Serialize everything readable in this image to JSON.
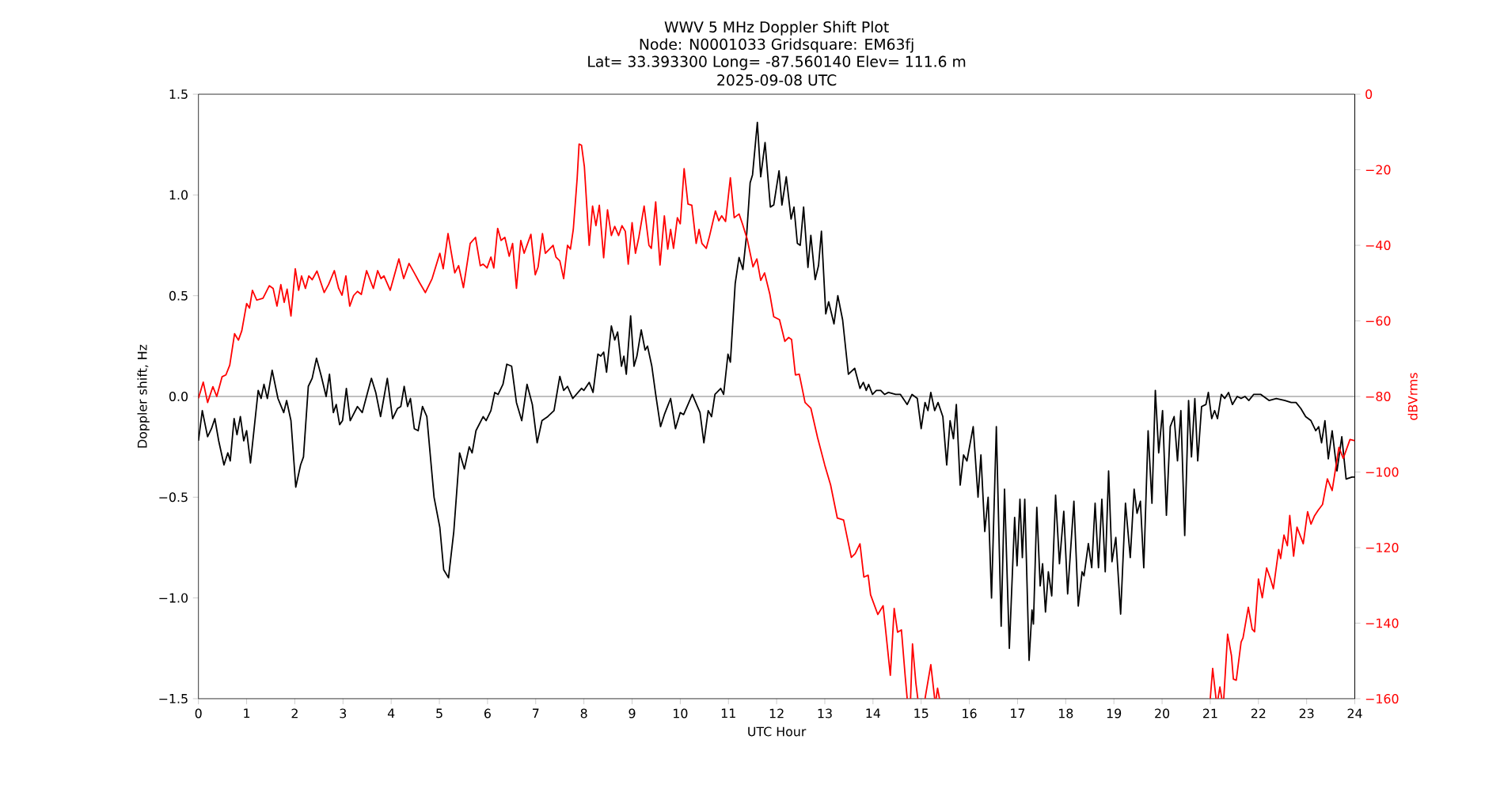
{
  "chart_data": {
    "type": "line",
    "title": "WWV 5 MHz Doppler Shift Plot",
    "subtitle": "Node:  N0001033     Gridsquare:  EM63fj",
    "annotations": [
      "Lat= 33.393300    Long= -87.560140    Elev= 111.6 m",
      "2025-09-08  UTC"
    ],
    "xlabel": "UTC Hour",
    "ylabel": "Doppler shift, Hz",
    "y2label": "dBVrms",
    "xlim": [
      0,
      24
    ],
    "xticks": [
      0,
      1,
      2,
      3,
      4,
      5,
      6,
      7,
      8,
      9,
      10,
      11,
      12,
      13,
      14,
      15,
      16,
      17,
      18,
      19,
      20,
      21,
      22,
      23,
      24
    ],
    "ylim": [
      -1.5,
      1.5
    ],
    "yticks": [
      {
        "value": -1.5,
        "label": "−1.5"
      },
      {
        "value": -1.0,
        "label": "−1.0"
      },
      {
        "value": -0.5,
        "label": "−0.5"
      },
      {
        "value": 0.0,
        "label": "0.0"
      },
      {
        "value": 0.5,
        "label": "0.5"
      },
      {
        "value": 1.0,
        "label": "1.0"
      },
      {
        "value": 1.5,
        "label": "1.5"
      }
    ],
    "y2lim": [
      -160,
      0
    ],
    "y2ticks": [
      {
        "value": -160,
        "label": "−160"
      },
      {
        "value": -140,
        "label": "−140"
      },
      {
        "value": -120,
        "label": "−120"
      },
      {
        "value": -100,
        "label": "−100"
      },
      {
        "value": -80,
        "label": "−80"
      },
      {
        "value": -60,
        "label": "−60"
      },
      {
        "value": -40,
        "label": "−40"
      },
      {
        "value": -20,
        "label": "−20"
      },
      0
    ],
    "ref_lines": [
      {
        "axis": "y",
        "value": 0,
        "color": "#808080"
      }
    ],
    "series": [
      {
        "color": "#000000",
        "x": [
          0,
          0.08,
          0.19,
          0.27,
          0.34,
          0.42,
          0.53,
          0.61,
          0.66,
          0.74,
          0.8,
          0.87,
          0.94,
          1.0,
          1.08,
          1.24,
          1.3,
          1.36,
          1.43,
          1.53,
          1.65,
          1.77,
          1.83,
          1.92,
          2.02,
          2.12,
          2.18,
          2.28,
          2.36,
          2.45,
          2.55,
          2.65,
          2.72,
          2.8,
          2.86,
          2.93,
          2.99,
          3.07,
          3.15,
          3.3,
          3.4,
          3.51,
          3.59,
          3.68,
          3.78,
          3.92,
          4.03,
          4.13,
          4.2,
          4.27,
          4.34,
          4.4,
          4.48,
          4.56,
          4.65,
          4.74,
          4.89,
          5.01,
          5.09,
          5.19,
          5.3,
          5.42,
          5.52,
          5.62,
          5.68,
          5.76,
          5.91,
          5.97,
          6.07,
          6.15,
          6.22,
          6.32,
          6.4,
          6.5,
          6.6,
          6.71,
          6.82,
          6.93,
          7.03,
          7.13,
          7.25,
          7.38,
          7.5,
          7.58,
          7.66,
          7.77,
          7.95,
          8.0,
          8.11,
          8.19,
          8.29,
          8.35,
          8.41,
          8.47,
          8.57,
          8.64,
          8.7,
          8.78,
          8.83,
          8.88,
          8.97,
          9.04,
          9.1,
          9.19,
          9.27,
          9.32,
          9.41,
          9.49,
          9.59,
          9.67,
          9.8,
          9.9,
          10.0,
          10.07,
          10.25,
          10.41,
          10.49,
          10.58,
          10.65,
          10.72,
          10.84,
          10.9,
          10.99,
          11.04,
          11.14,
          11.22,
          11.3,
          11.38,
          11.45,
          11.5,
          11.6,
          11.67,
          11.76,
          11.87,
          11.94,
          12.05,
          12.11,
          12.2,
          12.3,
          12.36,
          12.43,
          12.49,
          12.56,
          12.65,
          12.71,
          12.8,
          12.87,
          12.93,
          13.02,
          13.08,
          13.19,
          13.27,
          13.37,
          13.49,
          13.62,
          13.73,
          13.8,
          13.86,
          13.91,
          13.99,
          14.07,
          14.16,
          14.24,
          14.32,
          14.47,
          14.57,
          14.71,
          14.81,
          14.92,
          15.0,
          15.08,
          15.14,
          15.2,
          15.28,
          15.35,
          15.45,
          15.53,
          15.6,
          15.67,
          15.73,
          15.81,
          15.88,
          15.95,
          16.08,
          16.18,
          16.24,
          16.32,
          16.39,
          16.46,
          16.56,
          16.66,
          16.73,
          16.83,
          16.94,
          16.99,
          17.05,
          17.1,
          17.15,
          17.24,
          17.3,
          17.33,
          17.4,
          17.47,
          17.52,
          17.58,
          17.64,
          17.71,
          17.79,
          17.87,
          17.96,
          18.04,
          18.17,
          18.26,
          18.34,
          18.38,
          18.47,
          18.54,
          18.61,
          18.68,
          18.75,
          18.82,
          18.89,
          18.96,
          19.04,
          19.14,
          19.24,
          19.34,
          19.42,
          19.48,
          19.55,
          19.62,
          19.71,
          19.79,
          19.86,
          19.93,
          20.01,
          20.09,
          20.17,
          20.25,
          20.32,
          20.39,
          20.47,
          20.55,
          20.61,
          20.68,
          20.74,
          20.82,
          20.91,
          20.96,
          21.03,
          21.09,
          21.15,
          21.23,
          21.3,
          21.38,
          21.46,
          21.56,
          21.64,
          21.72,
          21.8,
          21.9,
          22.05,
          22.22,
          22.37,
          22.55,
          22.68,
          22.78,
          22.88,
          22.98,
          23.09,
          23.19,
          23.25,
          23.31,
          23.38,
          23.45,
          23.53,
          23.63,
          23.73,
          23.82,
          23.94,
          24.0
        ],
        "values": [
          -0.22,
          -0.07,
          -0.2,
          -0.16,
          -0.11,
          -0.22,
          -0.34,
          -0.28,
          -0.32,
          -0.11,
          -0.19,
          -0.1,
          -0.22,
          -0.17,
          -0.33,
          0.03,
          -0.01,
          0.06,
          -0.01,
          0.13,
          -0.01,
          -0.08,
          -0.02,
          -0.12,
          -0.45,
          -0.34,
          -0.3,
          0.05,
          0.09,
          0.19,
          0.1,
          0,
          0.11,
          -0.08,
          -0.04,
          -0.14,
          -0.12,
          0.04,
          -0.12,
          -0.05,
          -0.08,
          0.02,
          0.09,
          0.02,
          -0.1,
          0.09,
          -0.11,
          -0.06,
          -0.05,
          0.05,
          -0.05,
          -0.01,
          -0.16,
          -0.17,
          -0.05,
          -0.1,
          -0.5,
          -0.65,
          -0.86,
          -0.9,
          -0.67,
          -0.28,
          -0.36,
          -0.25,
          -0.28,
          -0.17,
          -0.1,
          -0.12,
          -0.07,
          0.02,
          0.01,
          0.06,
          0.16,
          0.15,
          -0.03,
          -0.12,
          0.06,
          -0.04,
          -0.23,
          -0.12,
          -0.1,
          -0.07,
          0.1,
          0.03,
          0.05,
          -0.01,
          0.04,
          0.03,
          0.07,
          0.02,
          0.21,
          0.2,
          0.22,
          0.12,
          0.35,
          0.28,
          0.32,
          0.15,
          0.2,
          0.11,
          0.4,
          0.15,
          0.2,
          0.33,
          0.23,
          0.25,
          0.15,
          0.01,
          -0.15,
          -0.09,
          -0.01,
          -0.16,
          -0.08,
          -0.09,
          0.01,
          -0.08,
          -0.23,
          -0.07,
          -0.1,
          0.01,
          0.04,
          0.01,
          0.21,
          0.17,
          0.56,
          0.69,
          0.63,
          0.81,
          1.06,
          1.1,
          1.36,
          1.09,
          1.26,
          0.94,
          0.95,
          1.12,
          0.95,
          1.09,
          0.88,
          0.94,
          0.76,
          0.75,
          0.94,
          0.64,
          0.8,
          0.58,
          0.65,
          0.82,
          0.41,
          0.47,
          0.36,
          0.5,
          0.38,
          0.11,
          0.14,
          0.04,
          0.07,
          0.03,
          0.06,
          0.01,
          0.03,
          0.03,
          0.01,
          0.02,
          0.01,
          0.01,
          -0.04,
          0.01,
          -0.01,
          -0.16,
          -0.03,
          -0.07,
          0.02,
          -0.07,
          -0.03,
          -0.1,
          -0.34,
          -0.12,
          -0.21,
          -0.04,
          -0.44,
          -0.29,
          -0.32,
          -0.15,
          -0.5,
          -0.29,
          -0.67,
          -0.5,
          -1.0,
          -0.15,
          -1.14,
          -0.46,
          -1.25,
          -0.6,
          -0.84,
          -0.51,
          -0.8,
          -0.51,
          -1.31,
          -1.06,
          -1.13,
          -0.55,
          -0.94,
          -0.83,
          -1.07,
          -0.87,
          -0.99,
          -0.49,
          -0.83,
          -0.57,
          -0.98,
          -0.52,
          -1.04,
          -0.87,
          -0.89,
          -0.73,
          -0.85,
          -0.53,
          -0.85,
          -0.51,
          -0.87,
          -0.37,
          -0.82,
          -0.7,
          -1.08,
          -0.53,
          -0.8,
          -0.46,
          -0.58,
          -0.52,
          -0.85,
          -0.17,
          -0.53,
          0.03,
          -0.28,
          -0.07,
          -0.59,
          -0.15,
          -0.1,
          -0.32,
          -0.07,
          -0.69,
          -0.02,
          -0.3,
          -0.01,
          -0.32,
          -0.05,
          -0.04,
          0.02,
          -0.11,
          -0.07,
          -0.11,
          0.01,
          -0.01,
          0.02,
          -0.04,
          0.0,
          -0.01,
          0.0,
          -0.02,
          0.01,
          0.01,
          -0.02,
          -0.01,
          -0.02,
          -0.03,
          -0.03,
          -0.06,
          -0.1,
          -0.12,
          -0.17,
          -0.15,
          -0.23,
          -0.12,
          -0.31,
          -0.17,
          -0.37,
          -0.2,
          -0.41,
          -0.4,
          -0.4
        ]
      },
      {
        "color": "#ff0000",
        "axis": "y2",
        "x": [
          0,
          0.1,
          0.19,
          0.3,
          0.38,
          0.49,
          0.57,
          0.65,
          0.75,
          0.83,
          0.9,
          1.0,
          1.06,
          1.12,
          1.21,
          1.34,
          1.47,
          1.55,
          1.63,
          1.71,
          1.78,
          1.84,
          1.92,
          2.01,
          2.08,
          2.14,
          2.22,
          2.29,
          2.36,
          2.46,
          2.61,
          2.7,
          2.82,
          2.91,
          2.98,
          3.06,
          3.14,
          3.22,
          3.3,
          3.38,
          3.49,
          3.63,
          3.72,
          3.79,
          3.85,
          3.98,
          4.16,
          4.26,
          4.37,
          4.48,
          4.59,
          4.71,
          4.85,
          5.01,
          5.08,
          5.18,
          5.32,
          5.4,
          5.5,
          5.64,
          5.75,
          5.85,
          5.91,
          5.99,
          6.07,
          6.13,
          6.21,
          6.28,
          6.36,
          6.45,
          6.52,
          6.6,
          6.69,
          6.76,
          6.9,
          6.99,
          7.05,
          7.14,
          7.2,
          7.36,
          7.42,
          7.5,
          7.58,
          7.66,
          7.72,
          7.78,
          7.86,
          7.9,
          7.95,
          8.01,
          8.11,
          8.18,
          8.25,
          8.32,
          8.41,
          8.49,
          8.57,
          8.64,
          8.72,
          8.79,
          8.86,
          8.92,
          9.0,
          9.07,
          9.14,
          9.25,
          9.35,
          9.4,
          9.49,
          9.58,
          9.67,
          9.74,
          9.8,
          9.86,
          9.94,
          10.0,
          10.08,
          10.16,
          10.24,
          10.33,
          10.39,
          10.45,
          10.54,
          10.61,
          10.73,
          10.8,
          10.86,
          10.94,
          11.04,
          11.12,
          11.22,
          11.29,
          11.39,
          11.51,
          11.59,
          11.67,
          11.75,
          11.86,
          11.94,
          12.06,
          12.17,
          12.25,
          12.31,
          12.39,
          12.47,
          12.59,
          12.71,
          12.85,
          13.0,
          13.12,
          13.26,
          13.39,
          13.55,
          13.63,
          13.73,
          13.81,
          13.9,
          13.95,
          14.1,
          14.21,
          14.36,
          14.44,
          14.51,
          14.59,
          14.67,
          14.71,
          14.75,
          14.78,
          14.82,
          14.89,
          14.93,
          15.0,
          15.08,
          15.2,
          15.28,
          15.3,
          15.31,
          15.34,
          15.38,
          18,
          21.0,
          21.05,
          21.12,
          21.14,
          21.16,
          21.2,
          21.24,
          21.26,
          21.28,
          21.36,
          21.44,
          21.48,
          21.54,
          21.64,
          21.68,
          21.79,
          21.87,
          21.92,
          22.0,
          22.08,
          22.17,
          22.25,
          22.31,
          22.42,
          22.46,
          22.53,
          22.6,
          22.65,
          22.73,
          22.8,
          22.93,
          23.02,
          23.09,
          23.16,
          23.24,
          23.33,
          23.43,
          23.53,
          23.67,
          23.76,
          23.9,
          24.0
        ],
        "values": [
          -80.5,
          -76.2,
          -81.6,
          -77.4,
          -80,
          -74.8,
          -74.3,
          -71.7,
          -63.4,
          -65.1,
          -62.6,
          -55.4,
          -56.6,
          -51.9,
          -54.5,
          -54,
          -50.7,
          -51.4,
          -56.1,
          -50.4,
          -55.1,
          -51.6,
          -58.7,
          -46.2,
          -51.9,
          -48.1,
          -51.4,
          -48.1,
          -49.1,
          -46.8,
          -52.5,
          -50.4,
          -46.7,
          -51.4,
          -53.2,
          -48.1,
          -56.1,
          -53.3,
          -52.2,
          -53,
          -46.7,
          -51.4,
          -46.7,
          -48.8,
          -48.1,
          -51.9,
          -43.6,
          -48.8,
          -44.8,
          -47.3,
          -49.9,
          -52.5,
          -48.8,
          -42.1,
          -46.2,
          -36.9,
          -47.3,
          -45.4,
          -51.2,
          -39.5,
          -37.9,
          -45.4,
          -45,
          -46,
          -43.1,
          -46,
          -35.5,
          -38.7,
          -37.9,
          -42.9,
          -39.5,
          -51.4,
          -38.7,
          -42.1,
          -37.1,
          -47.8,
          -45.7,
          -36.9,
          -42.1,
          -40,
          -43.1,
          -44.1,
          -48.8,
          -40,
          -41,
          -35.8,
          -22.3,
          -13.2,
          -13.5,
          -19.2,
          -40,
          -29.6,
          -34.8,
          -29.4,
          -43.3,
          -30.6,
          -37.4,
          -35,
          -37.4,
          -34.8,
          -36.3,
          -45,
          -34,
          -42.1,
          -37.9,
          -29.6,
          -40,
          -40.8,
          -28.5,
          -45.2,
          -32.2,
          -41,
          -35.8,
          -40.8,
          -32.7,
          -34.3,
          -19.7,
          -29.1,
          -29.4,
          -39.5,
          -35.8,
          -39.5,
          -40.8,
          -37.4,
          -30.9,
          -33.5,
          -32.2,
          -33.7,
          -22.1,
          -32.7,
          -31.7,
          -34.3,
          -38.4,
          -45.7,
          -43.6,
          -49.3,
          -47.3,
          -53,
          -58.9,
          -59.7,
          -65.4,
          -64.4,
          -64.9,
          -74.3,
          -74.1,
          -81.6,
          -83.1,
          -90.9,
          -98.2,
          -103.4,
          -112.2,
          -112.7,
          -122.6,
          -121.6,
          -119,
          -127.8,
          -127.3,
          -132.5,
          -137.7,
          -135.4,
          -153.8,
          -136.1,
          -142.4,
          -141.8,
          -154.3,
          -160,
          null,
          -160,
          -145.5,
          -155.9,
          -160,
          null,
          -160,
          -151,
          -160,
          null,
          -160,
          -157.2,
          -160,
          null,
          -160,
          -152,
          -160,
          null,
          -160,
          -156.9,
          -160,
          null,
          -160,
          -142.9,
          -148.6,
          -154.8,
          -155.1,
          -145,
          -143.9,
          -135.8,
          -141.6,
          -142.3,
          -128.3,
          -133.3,
          -125.4,
          -128.3,
          -130.9,
          -120.5,
          -122.9,
          -116.7,
          -119.5,
          -111.5,
          -122.3,
          -114.6,
          -119,
          -110.5,
          -113.8,
          -111.7,
          -110.1,
          -108.6,
          -101.8,
          -104.9,
          -93.5,
          -96.4,
          -91.4,
          -91.7
        ]
      }
    ]
  }
}
